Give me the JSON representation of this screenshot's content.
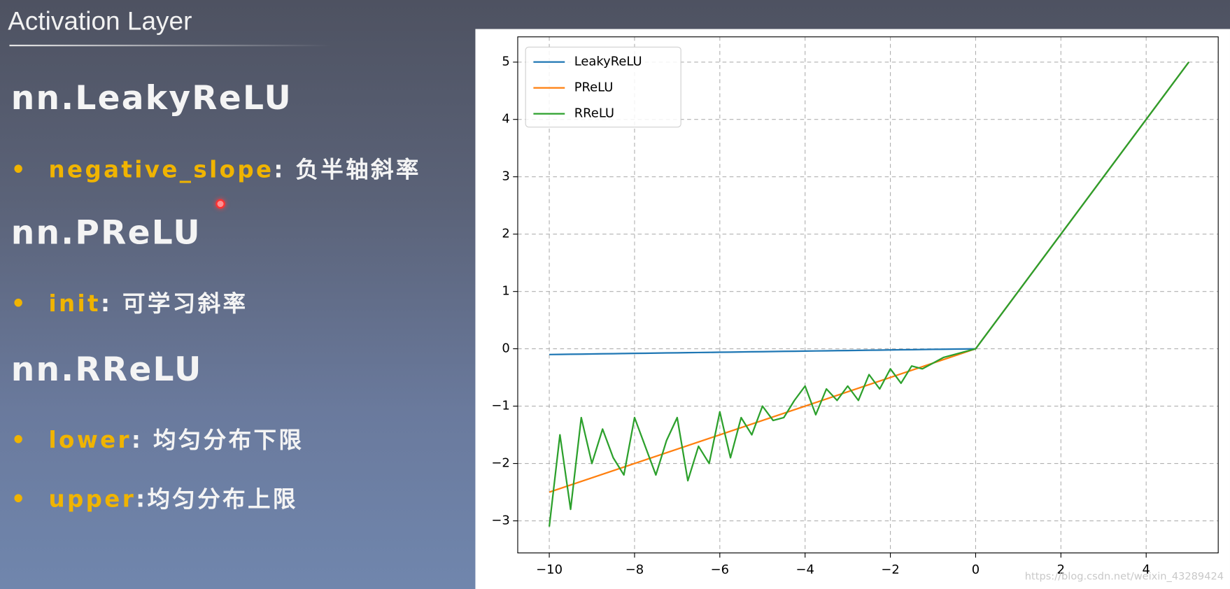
{
  "slide": {
    "title": "Activation Layer",
    "sections": [
      {
        "heading": "nn.LeakyReLU",
        "items": [
          {
            "key": "negative_slope",
            "text": ": 负半轴斜率"
          }
        ]
      },
      {
        "heading": "nn.PReLU",
        "items": [
          {
            "key": "init",
            "text": ": 可学习斜率"
          }
        ]
      },
      {
        "heading": "nn.RReLU",
        "items": [
          {
            "key": "lower",
            "text": ": 均匀分布下限"
          },
          {
            "key": "upper",
            "text": ":均匀分布上限"
          }
        ]
      }
    ]
  },
  "watermark": "https://blog.csdn.net/weixin_43289424",
  "chart_data": {
    "type": "line",
    "x": [
      -10,
      -9.75,
      -9.5,
      -9.25,
      -9,
      -8.75,
      -8.5,
      -8.25,
      -8,
      -7.75,
      -7.5,
      -7.25,
      -7,
      -6.75,
      -6.5,
      -6.25,
      -6,
      -5.75,
      -5.5,
      -5.25,
      -5,
      -4.75,
      -4.5,
      -4.25,
      -4,
      -3.75,
      -3.5,
      -3.25,
      -3,
      -2.75,
      -2.5,
      -2.25,
      -2,
      -1.75,
      -1.5,
      -1.25,
      -1,
      -0.75,
      -0.5,
      -0.25,
      0,
      5
    ],
    "series": [
      {
        "name": "LeakyReLU",
        "color": "#1f77b4",
        "values": [
          -0.1,
          -0.0975,
          -0.095,
          -0.0925,
          -0.09,
          -0.0875,
          -0.085,
          -0.0825,
          -0.08,
          -0.0775,
          -0.075,
          -0.0725,
          -0.07,
          -0.0675,
          -0.065,
          -0.0625,
          -0.06,
          -0.0575,
          -0.055,
          -0.0525,
          -0.05,
          -0.0475,
          -0.045,
          -0.0425,
          -0.04,
          -0.0375,
          -0.035,
          -0.0325,
          -0.03,
          -0.0275,
          -0.025,
          -0.0225,
          -0.02,
          -0.0175,
          -0.015,
          -0.0125,
          -0.01,
          -0.0075,
          -0.005,
          -0.0025,
          0,
          5
        ]
      },
      {
        "name": "PReLU",
        "color": "#ff7f0e",
        "values": [
          -2.5,
          -2.4375,
          -2.375,
          -2.3125,
          -2.25,
          -2.1875,
          -2.125,
          -2.0625,
          -2,
          -1.9375,
          -1.875,
          -1.8125,
          -1.75,
          -1.6875,
          -1.625,
          -1.5625,
          -1.5,
          -1.4375,
          -1.375,
          -1.3125,
          -1.25,
          -1.1875,
          -1.125,
          -1.0625,
          -1,
          -0.9375,
          -0.875,
          -0.8125,
          -0.75,
          -0.6875,
          -0.625,
          -0.5625,
          -0.5,
          -0.4375,
          -0.375,
          -0.3125,
          -0.25,
          -0.1875,
          -0.125,
          -0.0625,
          0,
          5
        ]
      },
      {
        "name": "RReLU",
        "color": "#2ca02c",
        "values": [
          -3.1,
          -1.5,
          -2.8,
          -1.2,
          -2.0,
          -1.4,
          -1.9,
          -2.2,
          -1.2,
          -1.7,
          -2.2,
          -1.6,
          -1.2,
          -2.3,
          -1.7,
          -2.0,
          -1.1,
          -1.9,
          -1.2,
          -1.5,
          -1.0,
          -1.25,
          -1.2,
          -0.9,
          -0.65,
          -1.15,
          -0.7,
          -0.9,
          -0.65,
          -0.9,
          -0.45,
          -0.7,
          -0.35,
          -0.6,
          -0.3,
          -0.35,
          -0.25,
          -0.15,
          -0.1,
          -0.05,
          0,
          5
        ]
      }
    ],
    "xlim": [
      -10.74,
      5.69
    ],
    "ylim": [
      -3.56,
      5.44
    ],
    "xticks": [
      {
        "value": -10,
        "label": "−10"
      },
      {
        "value": -8,
        "label": "−8"
      },
      {
        "value": -6,
        "label": "−6"
      },
      {
        "value": -4,
        "label": "−4"
      },
      {
        "value": -2,
        "label": "−2"
      },
      0,
      2,
      4
    ],
    "yticks": [
      {
        "value": -3,
        "label": "−3"
      },
      {
        "value": -2,
        "label": "−2"
      },
      {
        "value": -1,
        "label": "−1"
      },
      0,
      1,
      2,
      3,
      4,
      5
    ],
    "grid": true,
    "legend": "upper-left"
  }
}
